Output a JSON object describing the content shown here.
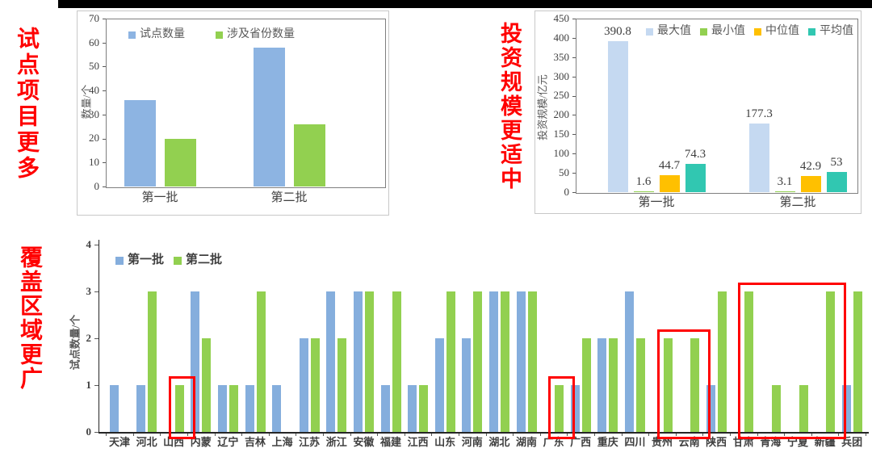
{
  "page": {
    "background": "#FFFFFF",
    "top_bar_color": "#000000"
  },
  "annotations": {
    "color": "#FF0000",
    "pilot_more": "试点项目更多",
    "investment_moderate": "投资规模更适中",
    "coverage_wider": "覆盖区域更广"
  },
  "chart_data": [
    {
      "id": "pilot-count",
      "type": "bar",
      "title": "",
      "ylabel": "数量/个",
      "ylim": [
        0,
        70
      ],
      "ytick_step": 10,
      "grid": false,
      "legend_position": "top-inside",
      "categories": [
        "第一批",
        "第二批"
      ],
      "series": [
        {
          "name": "试点数量",
          "color": "#8DB4E2",
          "values": [
            36,
            58
          ]
        },
        {
          "name": "涉及省份数量",
          "color": "#92D050",
          "values": [
            20,
            26
          ]
        }
      ]
    },
    {
      "id": "investment-scale",
      "type": "bar",
      "title": "",
      "ylabel": "投资规模/亿元",
      "ylim": [
        0,
        450
      ],
      "ytick_step": 50,
      "grid": false,
      "legend_position": "top-inside",
      "categories": [
        "第一批",
        "第二批"
      ],
      "series": [
        {
          "name": "最大值",
          "color": "#C5D9F1",
          "values": [
            390.8,
            177.3
          ]
        },
        {
          "name": "最小值",
          "color": "#92D050",
          "values": [
            1.6,
            3.1
          ]
        },
        {
          "name": "中位值",
          "color": "#FFC000",
          "values": [
            44.7,
            42.9
          ]
        },
        {
          "name": "平均值",
          "color": "#31C7B1",
          "values": [
            74.3,
            53
          ]
        }
      ],
      "data_labels": [
        [
          "390.8",
          "1.6",
          "44.7",
          "74.3"
        ],
        [
          "177.3",
          "3.1",
          "42.9",
          "53"
        ]
      ]
    },
    {
      "id": "regional-coverage",
      "type": "bar",
      "title": "",
      "ylabel": "试点数量/个",
      "ylim": [
        0,
        4
      ],
      "ytick_step": 1,
      "grid": false,
      "legend_position": "top-left-inside",
      "categories": [
        "天津",
        "河北",
        "山西",
        "内蒙",
        "辽宁",
        "吉林",
        "上海",
        "江苏",
        "浙江",
        "安徽",
        "福建",
        "江西",
        "山东",
        "河南",
        "湖北",
        "湖南",
        "广东",
        "广西",
        "重庆",
        "四川",
        "贵州",
        "云南",
        "陕西",
        "甘肃",
        "青海",
        "宁夏",
        "新疆",
        "兵团"
      ],
      "series": [
        {
          "name": "第一批",
          "color": "#85AEDD",
          "values": [
            1,
            1,
            0,
            3,
            1,
            1,
            1,
            2,
            3,
            3,
            1,
            1,
            2,
            2,
            3,
            3,
            0,
            1,
            2,
            3,
            0,
            0,
            1,
            0,
            0,
            0,
            0,
            1
          ]
        },
        {
          "name": "第二批",
          "color": "#92D050",
          "values": [
            0,
            3,
            1,
            2,
            1,
            3,
            0,
            2,
            2,
            3,
            3,
            1,
            3,
            3,
            3,
            3,
            1,
            2,
            2,
            2,
            2,
            2,
            3,
            3,
            1,
            1,
            3,
            3
          ]
        }
      ],
      "highlights": [
        {
          "categories": [
            "山西"
          ],
          "color": "#FF0000"
        },
        {
          "categories": [
            "广东"
          ],
          "color": "#FF0000"
        },
        {
          "categories": [
            "贵州",
            "云南"
          ],
          "color": "#FF0000"
        },
        {
          "categories": [
            "甘肃",
            "青海",
            "宁夏",
            "新疆"
          ],
          "color": "#FF0000"
        }
      ]
    }
  ]
}
